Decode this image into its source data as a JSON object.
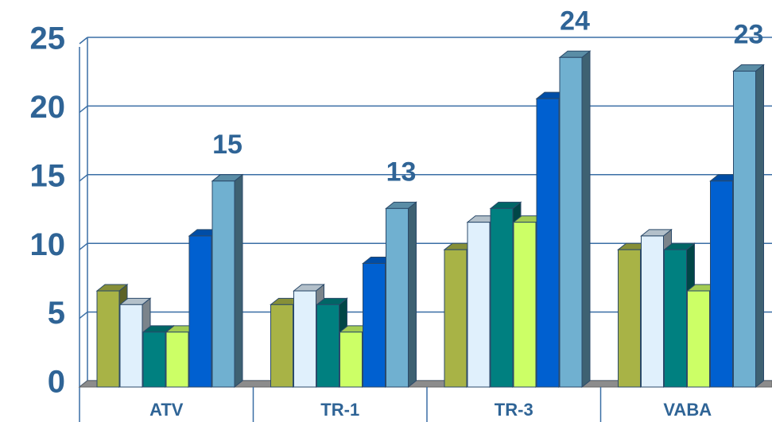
{
  "chart_data": {
    "type": "bar3d",
    "categories": [
      "ATV",
      "TR-1",
      "TR-3",
      "VABA"
    ],
    "series": [
      {
        "color": "#a8b346",
        "values": [
          7,
          6,
          10,
          10
        ]
      },
      {
        "color": "#e0f0fc",
        "values": [
          6,
          7,
          12,
          11
        ]
      },
      {
        "color": "#008080",
        "values": [
          4,
          6,
          13,
          10
        ]
      },
      {
        "color": "#ccff66",
        "values": [
          4,
          4,
          12,
          7
        ]
      },
      {
        "color": "#0060d0",
        "values": [
          11,
          9,
          21,
          15
        ]
      },
      {
        "color": "#70b0d0",
        "values": [
          15,
          13,
          24,
          23
        ],
        "show_labels": true
      }
    ],
    "ylim": [
      0,
      25
    ],
    "yticks": [
      0,
      5,
      10,
      15,
      20,
      25
    ],
    "grid": true
  }
}
